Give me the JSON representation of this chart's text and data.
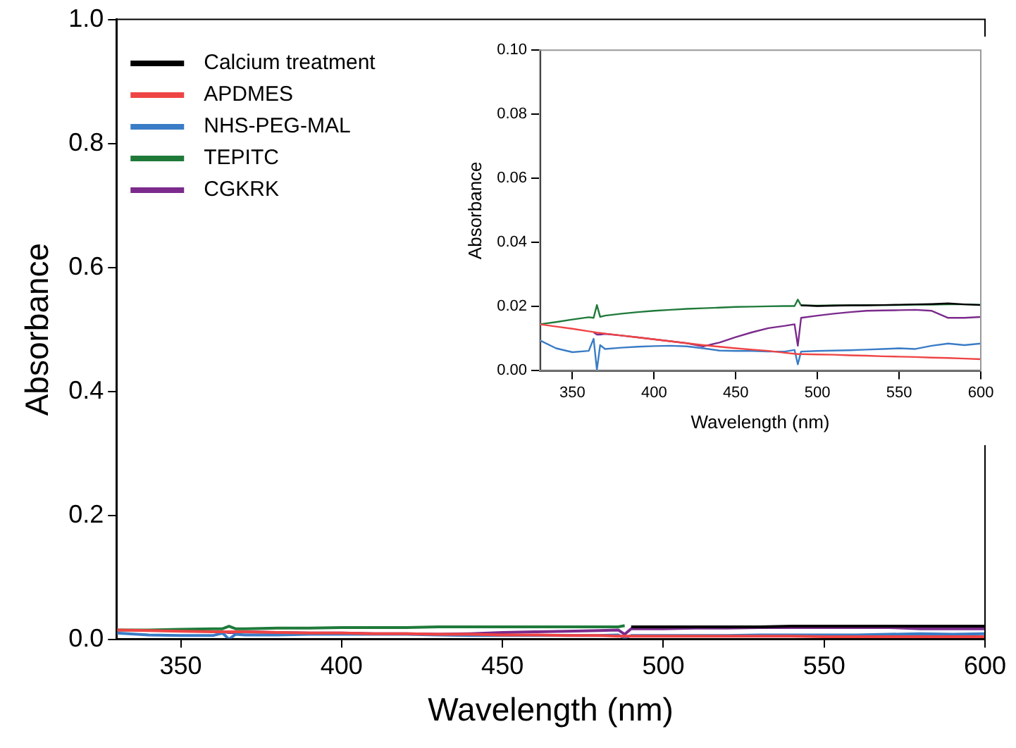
{
  "chart_data": [
    {
      "type": "line",
      "xlabel": "Wavelength (nm)",
      "ylabel": "Absorbance",
      "x": [
        330,
        340,
        350,
        360,
        363,
        365,
        367,
        370,
        380,
        390,
        400,
        410,
        420,
        430,
        440,
        450,
        460,
        470,
        480,
        486,
        488,
        490,
        500,
        510,
        520,
        530,
        540,
        550,
        560,
        570,
        580,
        590,
        600
      ],
      "xlim": [
        330,
        600
      ],
      "xticks": [
        350,
        400,
        450,
        500,
        550,
        600
      ],
      "ylim": [
        0,
        1
      ],
      "yticks": [
        {
          "value": 0,
          "label": "0.0"
        },
        {
          "value": 0.2,
          "label": "0.2"
        },
        {
          "value": 0.4,
          "label": "0.4"
        },
        {
          "value": 0.6,
          "label": "0.6"
        },
        {
          "value": 0.8,
          "label": "0.8"
        },
        {
          "value": 1,
          "label": "1.0"
        }
      ],
      "grid": false,
      "legend": "top left",
      "marker": "none",
      "line_style": "solid",
      "series": [
        {
          "name": "Calcium treatment",
          "color": "#000000",
          "values": [
            null,
            null,
            null,
            null,
            null,
            null,
            null,
            null,
            null,
            null,
            null,
            null,
            null,
            null,
            null,
            null,
            null,
            null,
            null,
            null,
            null,
            0.02,
            0.02,
            0.02,
            0.02,
            0.02,
            0.021,
            0.021,
            0.021,
            0.021,
            0.021,
            0.021,
            0.021
          ]
        },
        {
          "name": "APDMES",
          "color": "#ef4444",
          "values": [
            0.015,
            0.014,
            0.013,
            0.012,
            0.012,
            0.012,
            0.012,
            0.012,
            0.011,
            0.01,
            0.01,
            0.009,
            0.009,
            0.008,
            0.008,
            0.007,
            0.007,
            0.006,
            0.006,
            0.005,
            0.005,
            0.005,
            0.005,
            0.005,
            0.005,
            0.005,
            0.005,
            0.004,
            0.004,
            0.004,
            0.004,
            0.004,
            0.004
          ]
        },
        {
          "name": "NHS-PEG-MAL",
          "color": "#3a7cc6",
          "values": [
            0.01,
            0.007,
            0.006,
            0.006,
            0.01,
            0.0,
            0.008,
            0.007,
            0.007,
            0.008,
            0.008,
            0.008,
            0.008,
            0.007,
            0.006,
            0.006,
            0.006,
            0.006,
            0.006,
            0.007,
            0.002,
            0.006,
            0.006,
            0.006,
            0.006,
            0.007,
            0.007,
            0.007,
            0.007,
            0.008,
            0.009,
            0.008,
            0.009
          ]
        },
        {
          "name": "TEPITC",
          "color": "#1f7a3a",
          "values": [
            0.015,
            0.015,
            0.016,
            0.017,
            0.017,
            0.021,
            0.017,
            0.017,
            0.018,
            0.018,
            0.019,
            0.019,
            0.019,
            0.02,
            0.02,
            0.02,
            0.02,
            0.02,
            0.02,
            0.02,
            0.022,
            null,
            null,
            null,
            null,
            null,
            null,
            null,
            null,
            null,
            null,
            null,
            null
          ]
        },
        {
          "name": "CGKRK",
          "color": "#7b2a8c",
          "values": [
            null,
            null,
            null,
            null,
            0.012,
            0.011,
            0.011,
            0.012,
            0.011,
            0.01,
            0.01,
            0.009,
            0.009,
            0.008,
            0.009,
            0.011,
            0.012,
            0.013,
            0.014,
            0.015,
            0.008,
            0.017,
            0.017,
            0.018,
            0.018,
            0.019,
            0.019,
            0.019,
            0.019,
            0.019,
            0.017,
            0.017,
            0.017
          ]
        }
      ]
    },
    {
      "type": "line",
      "xlabel": "Wavelength (nm)",
      "ylabel": "Absorbance",
      "x": [
        330,
        340,
        350,
        360,
        363,
        365,
        367,
        370,
        380,
        390,
        400,
        410,
        420,
        430,
        440,
        450,
        460,
        470,
        480,
        486,
        488,
        490,
        500,
        510,
        520,
        530,
        540,
        550,
        560,
        570,
        580,
        590,
        600
      ],
      "xlim": [
        330,
        600
      ],
      "xticks": [
        350,
        400,
        450,
        500,
        550,
        600
      ],
      "ylim": [
        0,
        0.1
      ],
      "yticks": [
        {
          "value": 0,
          "label": "0.00"
        },
        {
          "value": 0.02,
          "label": "0.02"
        },
        {
          "value": 0.04,
          "label": "0.04"
        },
        {
          "value": 0.06,
          "label": "0.06"
        },
        {
          "value": 0.08,
          "label": "0.08"
        },
        {
          "value": 0.1,
          "label": "0.10"
        }
      ],
      "grid": false,
      "marker": "none",
      "line_style": "solid",
      "series": [
        {
          "color": "#000000",
          "values": [
            null,
            null,
            null,
            null,
            null,
            null,
            null,
            null,
            null,
            null,
            null,
            null,
            null,
            null,
            null,
            null,
            null,
            null,
            null,
            null,
            null,
            0.0204,
            0.0202,
            0.0203,
            0.0204,
            0.0204,
            0.0205,
            0.0206,
            0.0207,
            0.0208,
            0.021,
            0.0207,
            0.0205
          ]
        },
        {
          "color": "#ef4444",
          "values": [
            0.0145,
            0.0138,
            0.0131,
            0.0123,
            0.0121,
            0.0119,
            0.0118,
            0.0116,
            0.011,
            0.0104,
            0.0098,
            0.0092,
            0.0086,
            0.008,
            0.0075,
            0.007,
            0.0066,
            0.0062,
            0.0056,
            0.0053,
            0.0052,
            0.0052,
            0.0051,
            0.005,
            0.0048,
            0.0047,
            0.0045,
            0.0044,
            0.0043,
            0.0041,
            0.004,
            0.0038,
            0.0036
          ]
        },
        {
          "color": "#3a7cc6",
          "values": [
            0.0095,
            0.007,
            0.0058,
            0.0062,
            0.01,
            0.0003,
            0.008,
            0.0068,
            0.0072,
            0.0075,
            0.0077,
            0.0078,
            0.0076,
            0.007,
            0.0063,
            0.0062,
            0.0062,
            0.006,
            0.006,
            0.0065,
            0.002,
            0.006,
            0.0062,
            0.0063,
            0.0064,
            0.0066,
            0.0068,
            0.007,
            0.0068,
            0.0078,
            0.0085,
            0.008,
            0.0085
          ]
        },
        {
          "color": "#1f7a3a",
          "values": [
            0.0145,
            0.0152,
            0.016,
            0.0167,
            0.0165,
            0.0205,
            0.0168,
            0.0172,
            0.0178,
            0.0183,
            0.0187,
            0.019,
            0.0193,
            0.0195,
            0.0197,
            0.0199,
            0.02,
            0.0201,
            0.0202,
            0.0202,
            0.0222,
            0.0204,
            0.0203,
            0.0204,
            0.0204,
            0.0205,
            0.0205,
            0.0205,
            0.0206,
            0.0206,
            0.0207,
            0.0207,
            0.0206
          ]
        },
        {
          "color": "#7b2a8c",
          "values": [
            null,
            null,
            null,
            null,
            0.012,
            0.0113,
            0.0113,
            0.0115,
            0.011,
            0.0104,
            0.0098,
            0.0092,
            0.0086,
            0.0076,
            0.0088,
            0.0105,
            0.012,
            0.0133,
            0.014,
            0.0145,
            0.0078,
            0.0165,
            0.0172,
            0.0178,
            0.0183,
            0.0187,
            0.0188,
            0.0189,
            0.019,
            0.0187,
            0.0165,
            0.0165,
            0.0168
          ]
        }
      ]
    }
  ]
}
